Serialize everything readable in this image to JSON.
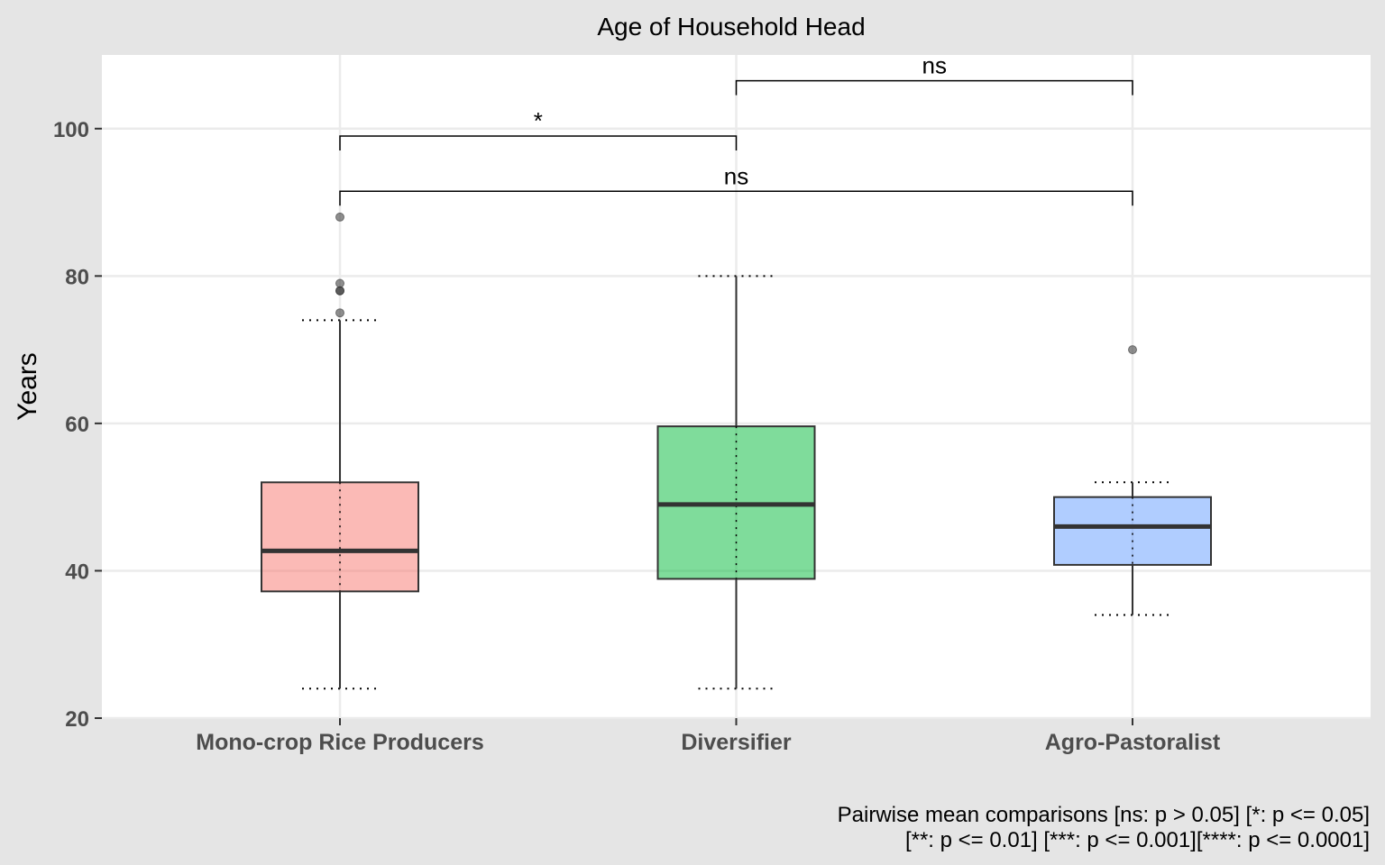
{
  "chart_data": {
    "type": "boxplot",
    "title": "Age of Household Head",
    "xlabel": "",
    "ylabel": "Years",
    "ylim": [
      20,
      110
    ],
    "yticks": [
      20,
      40,
      60,
      80,
      100
    ],
    "grid": true,
    "categories": [
      "Mono-crop Rice Producers",
      "Diversifier",
      "Agro-Pastoralist"
    ],
    "boxes": [
      {
        "category": "Mono-crop Rice Producers",
        "color": "#f8766d",
        "whisker_low": 24,
        "q1": 37.2,
        "median": 42.7,
        "q3": 52,
        "whisker_high": 74,
        "cap_low": 24,
        "cap_high": 74,
        "outliers": [
          75,
          78,
          78,
          79,
          88
        ]
      },
      {
        "category": "Diversifier",
        "color": "#00ba38",
        "whisker_low": 24,
        "q1": 38.9,
        "median": 49,
        "q3": 59.6,
        "whisker_high": 80,
        "cap_low": 24,
        "cap_high": 80,
        "outliers": []
      },
      {
        "category": "Agro-Pastoralist",
        "color": "#619cff",
        "whisker_low": 34,
        "q1": 40.8,
        "median": 46,
        "q3": 50,
        "whisker_high": 52,
        "cap_low": 34,
        "cap_high": 52,
        "outliers": [
          70
        ]
      }
    ],
    "comparisons": [
      {
        "from": 0,
        "to": 1,
        "y": 99,
        "label": "*"
      },
      {
        "from": 1,
        "to": 2,
        "y": 106.5,
        "label": "ns"
      },
      {
        "from": 0,
        "to": 2,
        "y": 91.5,
        "label": "ns"
      }
    ],
    "caption_lines": [
      "Pairwise mean comparisons [ns: p > 0.05] [*: p <= 0.05]",
      "[**: p <= 0.01] [***: p <= 0.001][****: p <= 0.0001]"
    ]
  }
}
